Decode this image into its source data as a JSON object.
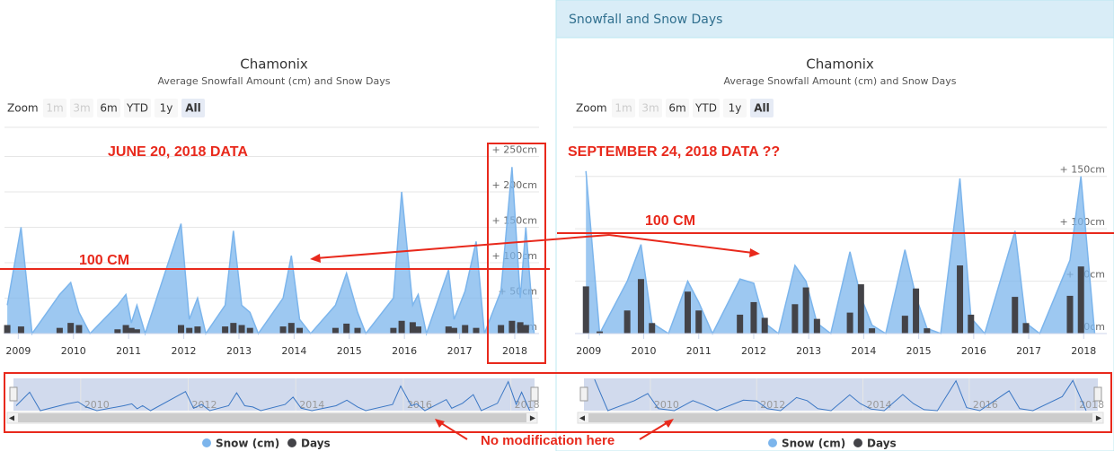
{
  "panel_header": "Snowfall and Snow Days",
  "annotations": [
    "JUNE 20, 2018 DATA",
    "SEPTEMBER 24, 2018 DATA ??",
    "100 CM",
    "100 CM",
    "No modification here"
  ],
  "chart_data": [
    {
      "type": "area-bar",
      "title": "Chamonix",
      "subtitle": "Average Snowfall Amount (cm) and Snow Days",
      "zoom": {
        "label": "Zoom",
        "buttons": [
          "1m",
          "3m",
          "6m",
          "YTD",
          "1y",
          "All"
        ]
      },
      "x": [
        2008.8,
        2009.05,
        2009.25,
        2009.75,
        2009.95,
        2010.1,
        2010.3,
        2010.8,
        2010.95,
        2011.05,
        2011.15,
        2011.3,
        2011.95,
        2012.1,
        2012.25,
        2012.4,
        2012.75,
        2012.9,
        2013.05,
        2013.2,
        2013.35,
        2013.8,
        2013.95,
        2014.1,
        2014.3,
        2014.75,
        2014.95,
        2015.15,
        2015.3,
        2015.8,
        2015.95,
        2016.15,
        2016.25,
        2016.4,
        2016.8,
        2016.9,
        2017.1,
        2017.3,
        2017.45,
        2017.75,
        2017.95,
        2018.1,
        2018.2,
        2018.35
      ],
      "xlim": [
        2008.75,
        2018.44
      ],
      "xticks": [
        2009,
        2010,
        2011,
        2012,
        2013,
        2014,
        2015,
        2016,
        2017,
        2018
      ],
      "ylim": [
        0,
        262
      ],
      "yticks": [
        {
          "value": 0,
          "label": "0cm"
        },
        {
          "value": 50,
          "label": "+ 50cm"
        },
        {
          "value": 100,
          "label": "+ 100cm"
        },
        {
          "value": 150,
          "label": "+ 150cm"
        },
        {
          "value": 200,
          "label": "+ 200cm"
        },
        {
          "value": 250,
          "label": "+ 250cm"
        }
      ],
      "navigator_ticks": [
        2010,
        2012,
        2014,
        2016,
        2018
      ],
      "series": [
        {
          "name": "Snow (cm)",
          "color": "#7cb5ec",
          "values": [
            40,
            150,
            0,
            55,
            72,
            30,
            0,
            40,
            55,
            15,
            40,
            0,
            155,
            20,
            50,
            0,
            40,
            145,
            40,
            30,
            0,
            50,
            110,
            20,
            0,
            40,
            85,
            30,
            0,
            50,
            200,
            40,
            55,
            0,
            90,
            20,
            60,
            130,
            0,
            60,
            235,
            50,
            150,
            0
          ]
        },
        {
          "name": "Days",
          "color": "#434348",
          "values": [
            12,
            10,
            null,
            8,
            15,
            12,
            null,
            6,
            12,
            8,
            6,
            null,
            12,
            8,
            10,
            null,
            10,
            15,
            12,
            8,
            null,
            10,
            15,
            8,
            null,
            8,
            14,
            8,
            null,
            8,
            18,
            16,
            10,
            null,
            10,
            8,
            12,
            8,
            null,
            12,
            18,
            16,
            12,
            null
          ]
        }
      ]
    },
    {
      "type": "area-bar",
      "title": "Chamonix",
      "subtitle": "Average Snowfall Amount (cm) and Snow Days",
      "zoom": {
        "label": "Zoom",
        "buttons": [
          "1m",
          "3m",
          "6m",
          "YTD",
          "1y",
          "All"
        ]
      },
      "x": [
        2008.95,
        2009.2,
        2009.7,
        2009.95,
        2010.15,
        2010.45,
        2010.8,
        2011.0,
        2011.25,
        2011.75,
        2012.0,
        2012.2,
        2012.45,
        2012.75,
        2012.95,
        2013.15,
        2013.4,
        2013.75,
        2013.95,
        2014.15,
        2014.4,
        2014.75,
        2014.95,
        2015.15,
        2015.4,
        2015.75,
        2015.95,
        2016.2,
        2016.75,
        2016.95,
        2017.2,
        2017.75,
        2017.95,
        2018.2
      ],
      "xlim": [
        2008.75,
        2018.42
      ],
      "xticks": [
        2009,
        2010,
        2011,
        2012,
        2013,
        2014,
        2015,
        2016,
        2017,
        2018
      ],
      "ylim": [
        0,
        160
      ],
      "yticks": [
        {
          "value": 0,
          "label": "0cm"
        },
        {
          "value": 50,
          "label": "+ 50cm"
        },
        {
          "value": 100,
          "label": "+ 100cm"
        },
        {
          "value": 150,
          "label": "+ 150cm"
        }
      ],
      "navigator_ticks": [
        2010,
        2012,
        2014,
        2016,
        2018
      ],
      "series": [
        {
          "name": "Snow (cm)",
          "color": "#7cb5ec",
          "values": [
            155,
            0,
            50,
            85,
            10,
            0,
            50,
            30,
            0,
            52,
            48,
            10,
            0,
            65,
            50,
            10,
            0,
            78,
            35,
            8,
            0,
            80,
            35,
            5,
            0,
            148,
            15,
            0,
            98,
            10,
            0,
            70,
            150,
            0
          ]
        },
        {
          "name": "Days",
          "color": "#434348",
          "values": [
            45,
            2,
            22,
            52,
            10,
            null,
            40,
            22,
            null,
            18,
            30,
            15,
            null,
            28,
            44,
            14,
            null,
            20,
            47,
            5,
            null,
            17,
            43,
            5,
            null,
            65,
            18,
            null,
            35,
            10,
            null,
            36,
            64,
            null
          ]
        }
      ]
    }
  ]
}
